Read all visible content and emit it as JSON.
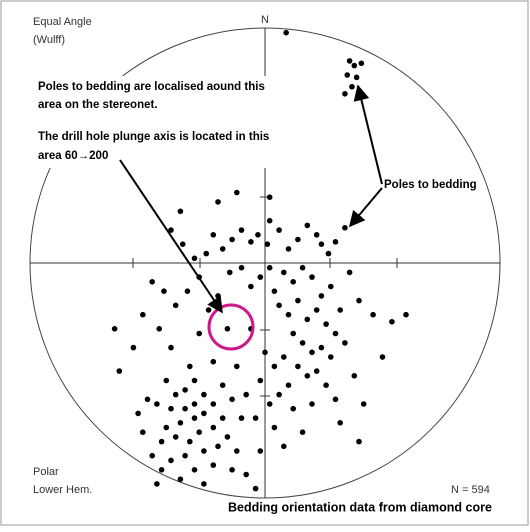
{
  "chart_data": {
    "type": "scatter",
    "projection": "Equal Angle",
    "projection_note": "(Wulff)",
    "north_label": "N",
    "plot_type": "Polar",
    "hemisphere": "Lower Hem.",
    "count_label": "N = 594",
    "caption": "Bedding orientation data from diamond core",
    "annotations": [
      "Poles to bedding are localised aound this",
      "area on the stereonet.",
      "The drill hole plunge axis is located in this",
      "area  60→200",
      "Poles to bedding"
    ],
    "xlim": [
      -100,
      100
    ],
    "ylim": [
      -100,
      100
    ],
    "color": "#000000",
    "x": [
      36,
      38,
      41,
      35,
      39,
      34,
      37,
      9,
      34,
      30,
      27,
      24,
      22,
      18,
      14,
      10,
      6,
      2,
      1,
      -3,
      -6,
      -10,
      -14,
      -18,
      -22,
      -25,
      -30,
      -35,
      -40,
      -48,
      -52,
      -45,
      -38,
      -33,
      -28,
      -24,
      -20,
      -15,
      -10,
      -6,
      -2,
      2,
      4,
      8,
      12,
      16,
      20,
      24,
      28,
      32,
      36,
      40,
      46,
      54,
      60,
      2,
      -20,
      -36,
      -12,
      -43,
      -62,
      -50,
      6,
      10,
      14,
      18,
      22,
      26,
      30,
      12,
      16,
      20,
      24,
      8,
      4,
      14,
      18,
      10,
      6,
      2,
      -2,
      0,
      22,
      28,
      26,
      34,
      12,
      -4,
      4,
      8,
      -2,
      16,
      32,
      40,
      30,
      20,
      -30,
      -34,
      -38,
      -26,
      -30,
      -34,
      -40,
      -22,
      -26,
      -30,
      -36,
      -42,
      -18,
      -22,
      -28,
      -32,
      -38,
      -44,
      -16,
      -20,
      -26,
      -34,
      -40,
      -48,
      -12,
      -14,
      -22,
      -30,
      -36,
      -44,
      -52,
      -54,
      -46,
      -42,
      -14,
      -10,
      -18,
      -8,
      -26,
      -46,
      -8,
      -12,
      -22,
      -32,
      -56,
      -64,
      -40,
      -28,
      -16,
      -6,
      42,
      50,
      38,
      -4
    ],
    "values": [
      86,
      84,
      85,
      80,
      79,
      72,
      75,
      98,
      15,
      9,
      4,
      8,
      12,
      16,
      10,
      6,
      14,
      18,
      8,
      12,
      9,
      14,
      10,
      6,
      12,
      4,
      2,
      8,
      14,
      -8,
      -22,
      -28,
      -18,
      -12,
      -6,
      -20,
      -14,
      -4,
      -2,
      -10,
      -6,
      -2,
      -12,
      -4,
      -8,
      -2,
      -6,
      -14,
      -10,
      -20,
      -4,
      -16,
      -22,
      -25,
      -22,
      28,
      26,
      22,
      30,
      -12,
      -46,
      -58,
      -18,
      -22,
      -16,
      -24,
      -20,
      -26,
      -30,
      -30,
      -34,
      -38,
      -36,
      -40,
      -44,
      -44,
      -48,
      -52,
      -56,
      -60,
      -50,
      -38,
      -46,
      -40,
      -52,
      -34,
      -62,
      -66,
      -70,
      -78,
      -80,
      -72,
      -68,
      -76,
      -58,
      -60,
      -50,
      -54,
      -56,
      -56,
      -60,
      -62,
      -62,
      -60,
      -64,
      -66,
      -68,
      -70,
      -66,
      -70,
      -72,
      -76,
      -74,
      -76,
      -74,
      -78,
      -80,
      -82,
      -84,
      -82,
      -80,
      -88,
      -86,
      -88,
      -92,
      -88,
      -72,
      -64,
      -60,
      -50,
      -58,
      -66,
      -52,
      -90,
      -94,
      -94,
      -56,
      -44,
      -42,
      -44,
      -36,
      -28,
      -36,
      -30,
      -28,
      -28,
      -60,
      -40,
      -48,
      -96
    ]
  }
}
